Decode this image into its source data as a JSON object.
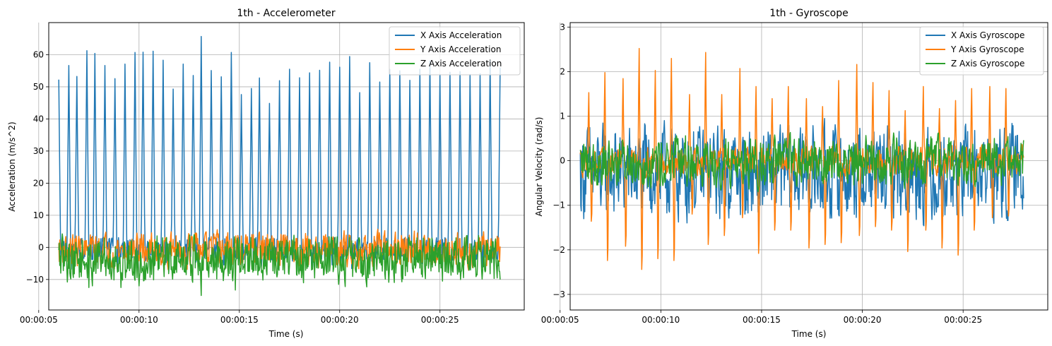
{
  "colors": {
    "x_axis": "#1f77b4",
    "y_axis": "#ff7f0e",
    "z_axis": "#2ca02c",
    "grid": "#b0b0b0"
  },
  "chart_data": [
    {
      "type": "line",
      "title": "1th - Accelerometer",
      "xlabel": "Time (s)",
      "ylabel": "Acceleration (m/s^2)",
      "x_range": [
        "00:00:06",
        "00:00:28"
      ],
      "xlim": [
        "00:00:05.5",
        "00:00:29.2"
      ],
      "ylim": [
        -19.5,
        70
      ],
      "xticks": [
        "00:00:05",
        "00:00:10",
        "00:00:15",
        "00:00:20",
        "00:00:25"
      ],
      "yticks": [
        -10,
        0,
        10,
        20,
        30,
        40,
        50,
        60
      ],
      "grid": true,
      "legend_position": "upper right",
      "series": [
        {
          "name": "X Axis Acceleration",
          "color": "#1f77b4",
          "peak_times": [
            "00:00:06.0",
            "00:00:06.5",
            "00:00:06.9",
            "00:00:07.4",
            "00:00:07.8",
            "00:00:08.3",
            "00:00:08.8",
            "00:00:09.3",
            "00:00:09.8",
            "00:00:10.2",
            "00:00:10.7",
            "00:00:11.2",
            "00:00:11.7",
            "00:00:12.2",
            "00:00:12.7",
            "00:00:13.1",
            "00:00:13.6",
            "00:00:14.1",
            "00:00:14.6",
            "00:00:15.1",
            "00:00:15.6",
            "00:00:16.0",
            "00:00:16.5",
            "00:00:17.0",
            "00:00:17.5",
            "00:00:18.0",
            "00:00:18.5",
            "00:00:19.0",
            "00:00:19.5",
            "00:00:20.0",
            "00:00:20.5",
            "00:00:21.0",
            "00:00:21.5",
            "00:00:22.0",
            "00:00:22.5",
            "00:00:23.0",
            "00:00:23.5",
            "00:00:24.0",
            "00:00:24.5",
            "00:00:25.0",
            "00:00:25.5",
            "00:00:26.0",
            "00:00:26.5",
            "00:00:27.0",
            "00:00:27.5",
            "00:00:28.0"
          ],
          "peak_values": [
            52,
            57,
            53,
            61.5,
            60,
            57,
            53,
            57.5,
            61,
            60.5,
            61.5,
            58,
            49,
            57,
            54,
            65.5,
            55,
            53,
            61,
            47.5,
            50,
            53,
            45,
            52,
            55.5,
            52.5,
            54.5,
            55,
            58,
            56.5,
            59,
            48.5,
            57.5,
            51.5,
            55,
            55,
            52.5,
            55,
            58,
            54,
            55,
            55,
            54,
            54,
            58,
            56
          ]
        },
        {
          "name": "Y Axis Acceleration",
          "color": "#ff7f0e",
          "range": [
            -9,
            7.5
          ]
        },
        {
          "name": "Z Axis Acceleration",
          "color": "#2ca02c",
          "range": [
            -15,
            7.5
          ],
          "dips": [
            {
              "t": "00:00:07.5",
              "v": -12.5
            },
            {
              "t": "00:00:09.1",
              "v": -12.5
            },
            {
              "t": "00:00:10.0",
              "v": -12
            },
            {
              "t": "00:00:13.1",
              "v": -15
            },
            {
              "t": "00:00:14.8",
              "v": -13.3
            }
          ]
        }
      ]
    },
    {
      "type": "line",
      "title": "1th - Gyroscope",
      "xlabel": "Time (s)",
      "ylabel": "Angular Velocity (rad/s)",
      "x_range": [
        "00:00:06",
        "00:00:28"
      ],
      "xlim": [
        "00:00:05.5",
        "00:00:29.2"
      ],
      "ylim": [
        -3.35,
        3.1
      ],
      "xticks": [
        "00:00:05",
        "00:00:10",
        "00:00:15",
        "00:00:20",
        "00:00:25"
      ],
      "yticks": [
        -3,
        -2,
        -1,
        0,
        1,
        2,
        3
      ],
      "grid": true,
      "legend_position": "upper right",
      "series": [
        {
          "name": "X Axis Gyroscope",
          "color": "#1f77b4",
          "range": [
            -1.9,
            1.35
          ]
        },
        {
          "name": "Y Axis Gyroscope",
          "color": "#ff7f0e",
          "peak_times": [
            "00:00:06.5",
            "00:00:07.3",
            "00:00:08.2",
            "00:00:09.0",
            "00:00:09.8",
            "00:00:10.6",
            "00:00:11.5",
            "00:00:12.3",
            "00:00:13.1",
            "00:00:14.0",
            "00:00:14.8",
            "00:00:15.6",
            "00:00:16.4",
            "00:00:17.3",
            "00:00:18.1",
            "00:00:18.9",
            "00:00:19.8",
            "00:00:20.6",
            "00:00:21.4",
            "00:00:22.2",
            "00:00:23.1",
            "00:00:23.9",
            "00:00:24.7",
            "00:00:25.5",
            "00:00:26.4",
            "00:00:27.2"
          ],
          "peak_values": [
            1.7,
            2.2,
            2.05,
            2.8,
            2.25,
            2.55,
            1.65,
            2.7,
            1.65,
            2.3,
            1.85,
            1.55,
            1.85,
            1.55,
            1.35,
            2.0,
            2.4,
            1.95,
            1.75,
            1.25,
            1.85,
            1.3,
            1.5,
            1.8,
            1.85,
            1.8
          ],
          "trough_values": [
            -1.7,
            -2.8,
            -2.4,
            -3.05,
            -2.75,
            -2.8,
            -1.5,
            -2.35,
            -2.1,
            -1.6,
            -2.6,
            -1.95,
            -1.95,
            -2.45,
            -2.35,
            -2.3,
            -2.1,
            -1.85,
            -1.95,
            -2.55,
            -1.95,
            -2.45,
            -2.65,
            -1.95,
            -1.6,
            -1.55
          ]
        },
        {
          "name": "Z Axis Gyroscope",
          "color": "#2ca02c",
          "range": [
            -0.9,
            0.85
          ]
        }
      ]
    }
  ]
}
